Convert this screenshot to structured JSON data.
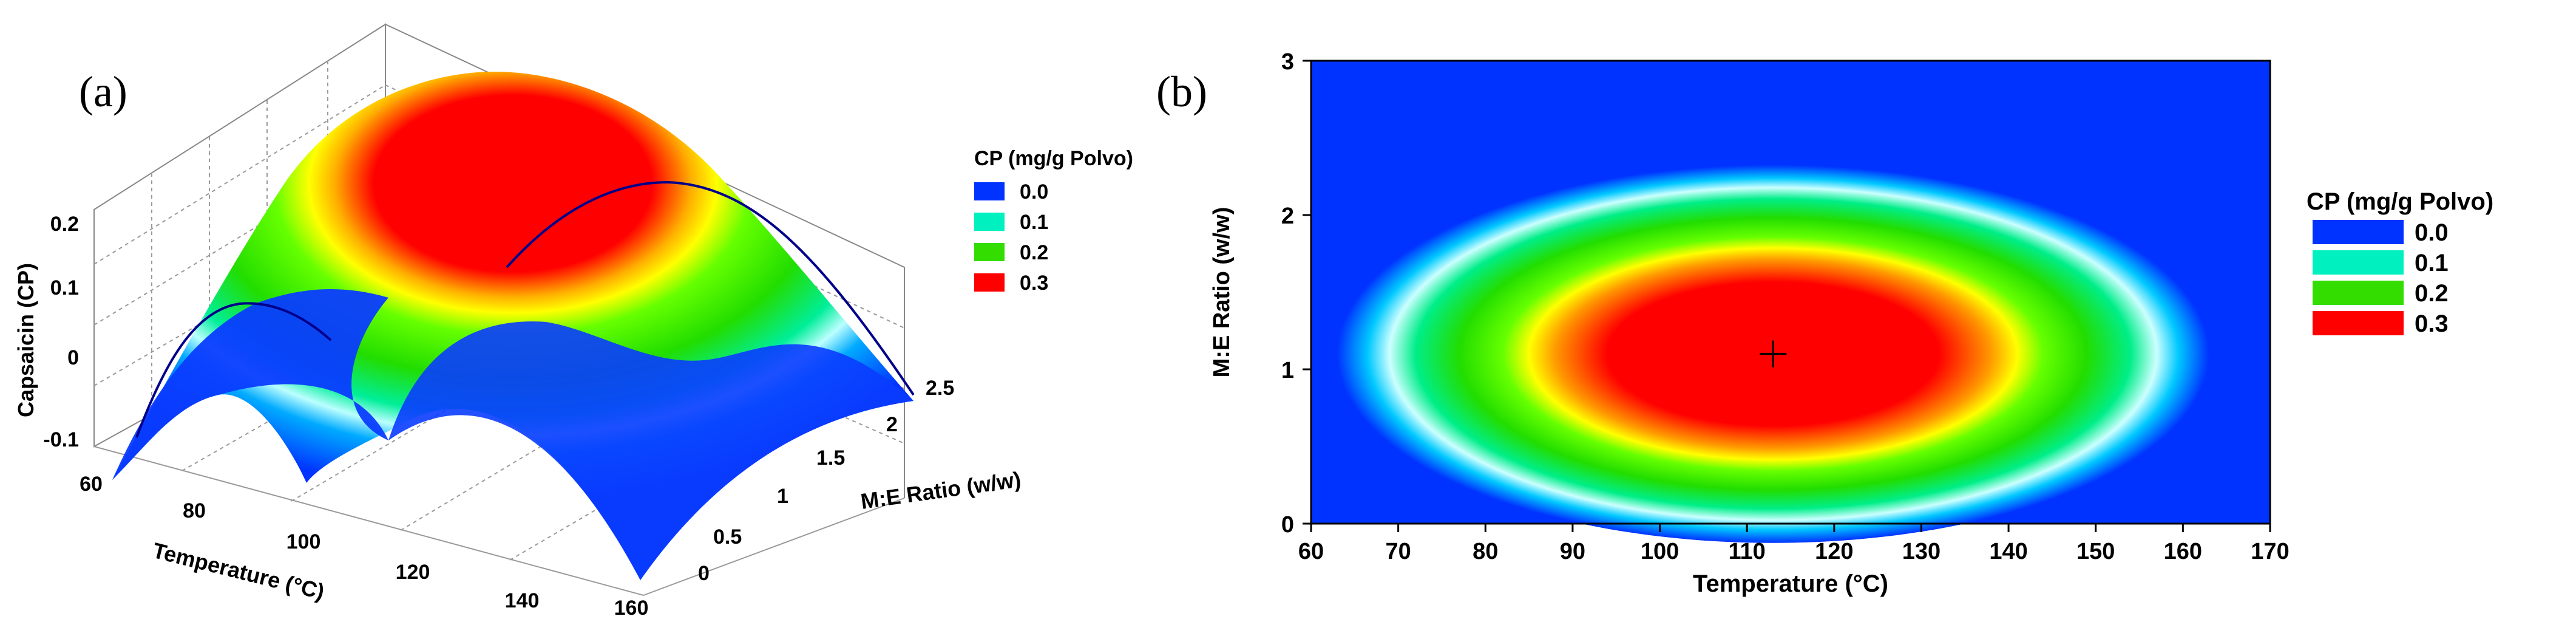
{
  "panel_a": {
    "label": "(a)"
  },
  "panel_b": {
    "label": "(b)"
  },
  "chart_data": [
    {
      "type": "surface3d",
      "xlabel": "Temperature (°C)",
      "ylabel": "M:E Ratio (w/w)",
      "zlabel": "Capsaicin (CP)",
      "x_ticks": [
        "60",
        "80",
        "100",
        "120",
        "140",
        "160"
      ],
      "y_ticks": [
        "0",
        "0.5",
        "1",
        "1.5",
        "2",
        "2.5"
      ],
      "z_ticks": [
        "-0.1",
        "0",
        "0.1",
        "0.2"
      ],
      "xlim": [
        60,
        170
      ],
      "ylim": [
        0,
        3
      ],
      "zlim": [
        -0.1,
        0.25
      ],
      "peak": {
        "x": 113,
        "y": 1.1,
        "z": 0.3
      },
      "legend": {
        "title": "CP (mg/g Polvo)",
        "entries": [
          {
            "label": "0.0",
            "color": "#0033ff"
          },
          {
            "label": "0.1",
            "color": "#00f0c0"
          },
          {
            "label": "0.2",
            "color": "#33dd00"
          },
          {
            "label": "0.3",
            "color": "#ff0000"
          }
        ]
      }
    },
    {
      "type": "heatmap",
      "xlabel": "Temperature (°C)",
      "ylabel": "M:E Ratio (w/w)",
      "x_ticks": [
        "60",
        "70",
        "80",
        "90",
        "100",
        "110",
        "120",
        "130",
        "140",
        "150",
        "160",
        "170"
      ],
      "y_ticks": [
        "0",
        "1",
        "2",
        "3"
      ],
      "xlim": [
        60,
        170
      ],
      "ylim": [
        0,
        3
      ],
      "optimum": {
        "x": 113,
        "y": 1.1
      },
      "contour_levels": [
        0.0,
        0.1,
        0.2,
        0.3
      ],
      "legend": {
        "title": "CP (mg/g Polvo)",
        "entries": [
          {
            "label": "0.0",
            "color": "#0033ff"
          },
          {
            "label": "0.1",
            "color": "#00f0c0"
          },
          {
            "label": "0.2",
            "color": "#33dd00"
          },
          {
            "label": "0.3",
            "color": "#ff0000"
          }
        ]
      }
    }
  ]
}
